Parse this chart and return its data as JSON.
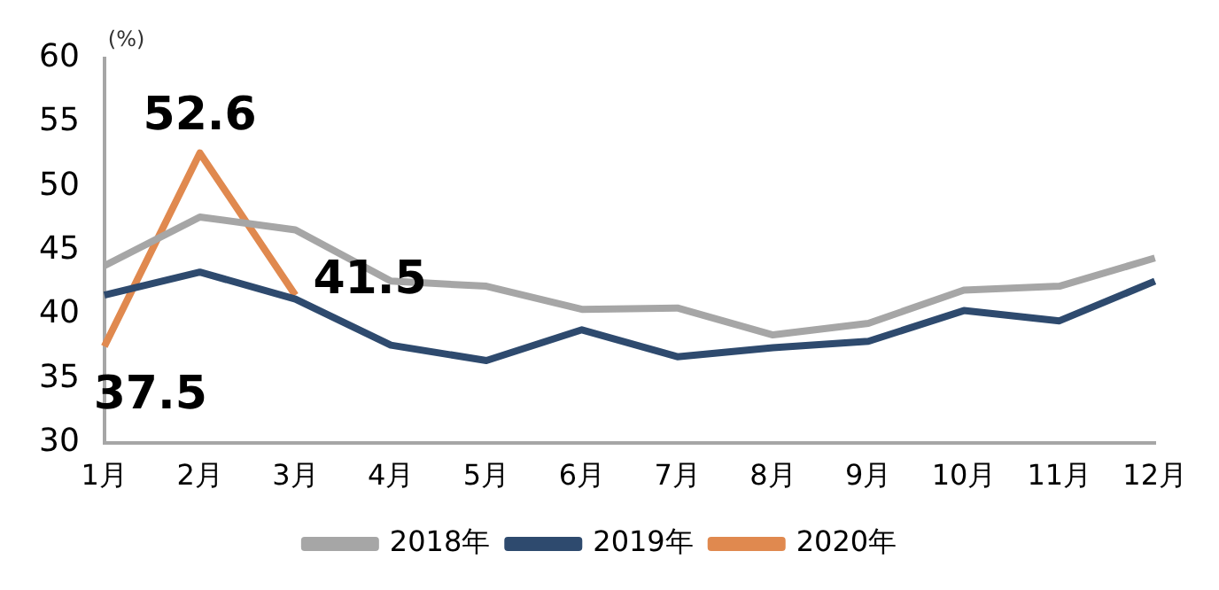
{
  "chart_data": {
    "type": "line",
    "ylabel": "(%)",
    "categories": [
      "1月",
      "2月",
      "3月",
      "4月",
      "5月",
      "6月",
      "7月",
      "8月",
      "9月",
      "10月",
      "11月",
      "12月"
    ],
    "series": [
      {
        "name": "2018年",
        "color": "#a6a6a6",
        "values": [
          43.8,
          47.6,
          46.6,
          42.6,
          42.2,
          40.4,
          40.5,
          38.4,
          39.3,
          41.9,
          42.2,
          44.4
        ]
      },
      {
        "name": "2019年",
        "color": "#2e4a6e",
        "values": [
          41.5,
          43.3,
          41.2,
          37.6,
          36.4,
          38.8,
          36.7,
          37.4,
          37.9,
          40.3,
          39.5,
          42.6
        ]
      },
      {
        "name": "2020年",
        "color": "#e0894f",
        "values": [
          37.5,
          52.6,
          41.5,
          null,
          null,
          null,
          null,
          null,
          null,
          null,
          null,
          null
        ],
        "value_labels": [
          "37.5",
          "52.6",
          "41.5",
          null,
          null,
          null,
          null,
          null,
          null,
          null,
          null,
          null
        ]
      }
    ],
    "ylim": [
      30,
      60
    ],
    "yticks": [
      30,
      35,
      40,
      45,
      50,
      55,
      60
    ],
    "grid": false,
    "legend": "bottom",
    "marker": "none",
    "line_style": "solid"
  }
}
